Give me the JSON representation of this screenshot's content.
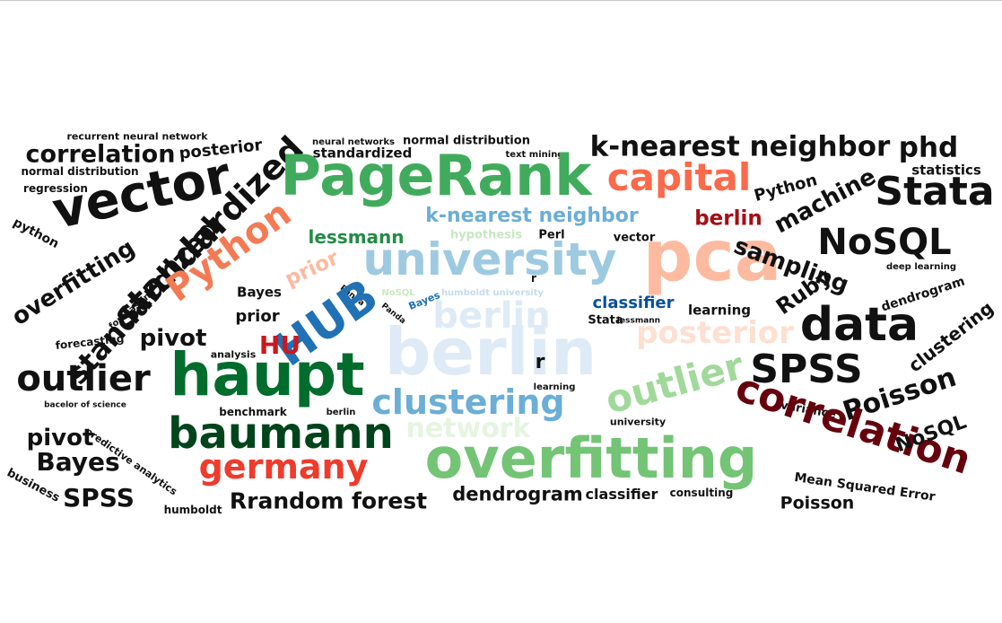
{
  "words": [
    {
      "text": "recurrent neural network",
      "color": "#111111"
    },
    {
      "text": "correlation",
      "color": "#111111"
    },
    {
      "text": "posterior",
      "color": "#111111"
    },
    {
      "text": "normal distribution",
      "color": "#111111"
    },
    {
      "text": "regression",
      "color": "#111111"
    },
    {
      "text": "vector",
      "color": "#111111"
    },
    {
      "text": "python",
      "color": "#111111"
    },
    {
      "text": "standardized",
      "color": "#111111"
    },
    {
      "text": "overfitting",
      "color": "#111111"
    },
    {
      "text": "standardized",
      "color": "#111111"
    },
    {
      "text": "Python",
      "color": "#f47a54"
    },
    {
      "text": "forecasting",
      "color": "#111111"
    },
    {
      "text": "forecasting",
      "color": "#111111"
    },
    {
      "text": "pivot",
      "color": "#111111"
    },
    {
      "text": "outlier",
      "color": "#111111"
    },
    {
      "text": "bacelor of science",
      "color": "#111111"
    },
    {
      "text": "pivot",
      "color": "#111111"
    },
    {
      "text": "predictive analytics",
      "color": "#111111"
    },
    {
      "text": "Bayes",
      "color": "#111111"
    },
    {
      "text": "business",
      "color": "#111111"
    },
    {
      "text": "SPSS",
      "color": "#111111"
    },
    {
      "text": "humboldt",
      "color": "#111111"
    },
    {
      "text": "Rrandom forest",
      "color": "#111111"
    },
    {
      "text": "neural networks",
      "color": "#111111"
    },
    {
      "text": "normal distribution",
      "color": "#111111"
    },
    {
      "text": "standardized",
      "color": "#111111"
    },
    {
      "text": "text mining",
      "color": "#111111"
    },
    {
      "text": "PageRank",
      "color": "#41ab5d"
    },
    {
      "text": "k-nearest neighbor",
      "color": "#111111"
    },
    {
      "text": "phd",
      "color": "#111111"
    },
    {
      "text": "capital",
      "color": "#fb6a4a"
    },
    {
      "text": "statistics",
      "color": "#111111"
    },
    {
      "text": "Stata",
      "color": "#111111"
    },
    {
      "text": "Python",
      "color": "#111111"
    },
    {
      "text": "machine",
      "color": "#111111"
    },
    {
      "text": "k-nearest neighbor",
      "color": "#6baed6"
    },
    {
      "text": "berlin",
      "color": "#a50f15"
    },
    {
      "text": "lessmann",
      "color": "#238b45"
    },
    {
      "text": "hypothesis",
      "color": "#c7e9c0"
    },
    {
      "text": "Perl",
      "color": "#111111"
    },
    {
      "text": "vector",
      "color": "#111111"
    },
    {
      "text": "pca",
      "color": "#fcbba1"
    },
    {
      "text": "NoSQL",
      "color": "#111111"
    },
    {
      "text": "sampling",
      "color": "#111111"
    },
    {
      "text": "university",
      "color": "#9ecae1"
    },
    {
      "text": "prior",
      "color": "#fcbba1"
    },
    {
      "text": "deep learning",
      "color": "#111111"
    },
    {
      "text": "dendrogram",
      "color": "#111111"
    },
    {
      "text": "Ruby",
      "color": "#111111"
    },
    {
      "text": "r",
      "color": "#111111"
    },
    {
      "text": "NoSQL",
      "color": "#c7e9c0"
    },
    {
      "text": "Bayes",
      "color": "#2171b5"
    },
    {
      "text": "humboldt university",
      "color": "#c6dbef"
    },
    {
      "text": "Panda",
      "color": "#111111"
    },
    {
      "text": "Panda",
      "color": "#111111"
    },
    {
      "text": "classifier",
      "color": "#08519c"
    },
    {
      "text": "learning",
      "color": "#111111"
    },
    {
      "text": "Bayes",
      "color": "#111111"
    },
    {
      "text": "HUB",
      "color": "#2171b5"
    },
    {
      "text": "berlin",
      "color": "#deebf7"
    },
    {
      "text": "Stata",
      "color": "#111111"
    },
    {
      "text": "lessmann",
      "color": "#111111"
    },
    {
      "text": "data",
      "color": "#111111"
    },
    {
      "text": "prior",
      "color": "#111111"
    },
    {
      "text": "posterior",
      "color": "#fee0d2"
    },
    {
      "text": "clustering",
      "color": "#111111"
    },
    {
      "text": "HU",
      "color": "#cb181d"
    },
    {
      "text": "analysis",
      "color": "#111111"
    },
    {
      "text": "berlin",
      "color": "#deebf7"
    },
    {
      "text": "SPSS",
      "color": "#111111"
    },
    {
      "text": "haupt",
      "color": "#006d2c"
    },
    {
      "text": "r",
      "color": "#111111"
    },
    {
      "text": "clustering",
      "color": "#6baed6"
    },
    {
      "text": "outlier",
      "color": "#a1d99b"
    },
    {
      "text": "Poisson",
      "color": "#111111"
    },
    {
      "text": "learning",
      "color": "#111111"
    },
    {
      "text": "benchmark",
      "color": "#111111"
    },
    {
      "text": "berlin",
      "color": "#111111"
    },
    {
      "text": "variance",
      "color": "#111111"
    },
    {
      "text": "correlation",
      "color": "#67000d"
    },
    {
      "text": "network",
      "color": "#e5f5e0"
    },
    {
      "text": "university",
      "color": "#111111"
    },
    {
      "text": "NoSQL",
      "color": "#111111"
    },
    {
      "text": "baumann",
      "color": "#00441b"
    },
    {
      "text": "overfitting",
      "color": "#74c476"
    },
    {
      "text": "germany",
      "color": "#ef3b2c"
    },
    {
      "text": "dendrogram",
      "color": "#111111"
    },
    {
      "text": "classifier",
      "color": "#111111"
    },
    {
      "text": "consulting",
      "color": "#111111"
    },
    {
      "text": "Mean Squared Error",
      "color": "#111111"
    },
    {
      "text": "Poisson",
      "color": "#111111"
    }
  ]
}
